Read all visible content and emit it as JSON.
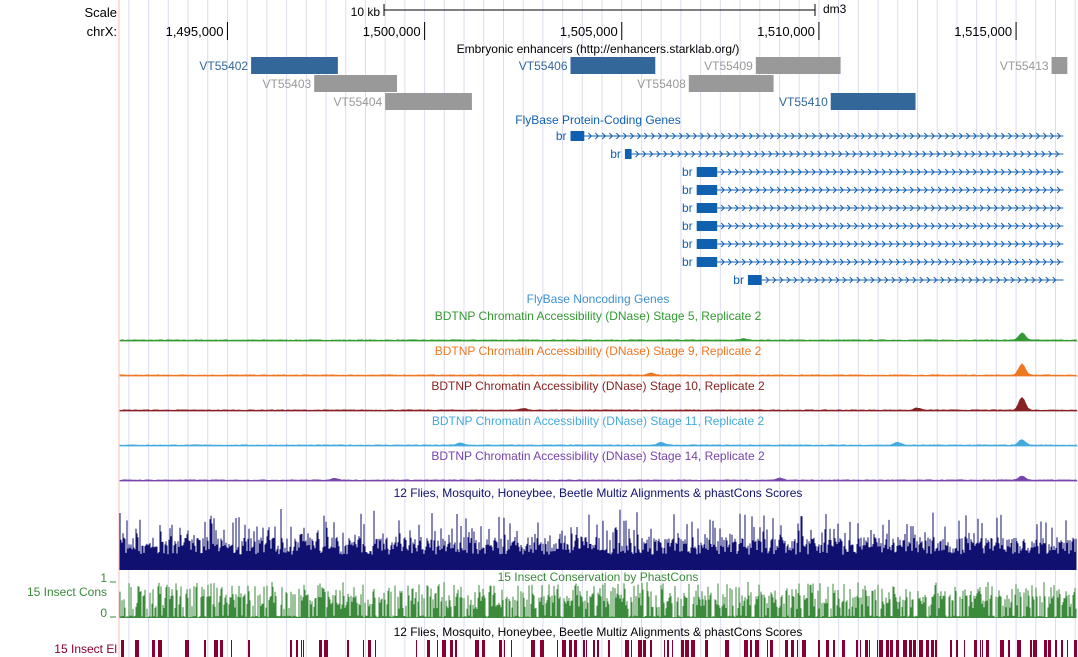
{
  "ruler": {
    "scale_label": "Scale",
    "chrom_label": "chrX:",
    "scalebar_label": "10 kb",
    "assembly": "dm3",
    "ticks": [
      {
        "pos": 1495000,
        "label": "1,495,000"
      },
      {
        "pos": 1500000,
        "label": "1,500,000"
      },
      {
        "pos": 1505000,
        "label": "1,505,000"
      },
      {
        "pos": 1510000,
        "label": "1,510,000"
      },
      {
        "pos": 1515000,
        "label": "1,515,000"
      }
    ]
  },
  "tracks": {
    "enhancers": {
      "title": "Embryonic enhancers (http://enhancers.starklab.org/)",
      "items": [
        {
          "name": "VT55402",
          "start": 1495600,
          "end": 1497800,
          "color": "#336699",
          "row": 0
        },
        {
          "name": "VT55403",
          "start": 1497200,
          "end": 1499300,
          "color": "#999999",
          "row": 1
        },
        {
          "name": "VT55404",
          "start": 1499000,
          "end": 1501200,
          "color": "#999999",
          "row": 2
        },
        {
          "name": "VT55406",
          "start": 1503700,
          "end": 1505850,
          "color": "#336699",
          "row": 0
        },
        {
          "name": "VT55408",
          "start": 1506700,
          "end": 1508850,
          "color": "#999999",
          "row": 1
        },
        {
          "name": "VT55409",
          "start": 1508400,
          "end": 1510550,
          "color": "#999999",
          "row": 0
        },
        {
          "name": "VT55410",
          "start": 1510300,
          "end": 1512450,
          "color": "#336699",
          "row": 2
        },
        {
          "name": "VT55413",
          "start": 1515900,
          "end": 1516300,
          "color": "#999999",
          "row": 0
        }
      ]
    },
    "genes": {
      "title": "FlyBase Protein-Coding Genes",
      "color": "#1060b0",
      "items": [
        {
          "name": "br",
          "exon_start": 1503700,
          "exon_end": 1504050,
          "end": 1516200
        },
        {
          "name": "br",
          "exon_start": 1505080,
          "exon_end": 1505250,
          "end": 1516200
        },
        {
          "name": "br",
          "exon_start": 1506900,
          "exon_end": 1507420,
          "end": 1516200
        },
        {
          "name": "br",
          "exon_start": 1506900,
          "exon_end": 1507420,
          "end": 1516200
        },
        {
          "name": "br",
          "exon_start": 1506900,
          "exon_end": 1507420,
          "end": 1516200
        },
        {
          "name": "br",
          "exon_start": 1506900,
          "exon_end": 1507420,
          "end": 1516200
        },
        {
          "name": "br",
          "exon_start": 1506900,
          "exon_end": 1507420,
          "end": 1516200
        },
        {
          "name": "br",
          "exon_start": 1506900,
          "exon_end": 1507420,
          "end": 1516200
        },
        {
          "name": "br",
          "exon_start": 1508200,
          "exon_end": 1508550,
          "end": 1516200
        }
      ]
    },
    "noncoding": {
      "title": "FlyBase Noncoding Genes",
      "color": "#4090d0"
    },
    "dnase": [
      {
        "title": "BDTNP Chromatin Accessibility (DNase) Stage 5, Replicate 2",
        "color": "#339933",
        "peaks": [
          {
            "pos": 1515150,
            "height": 0.5
          },
          {
            "pos": 1508100,
            "height": 0.1
          }
        ]
      },
      {
        "title": "BDTNP Chromatin Accessibility (DNase) Stage 9, Replicate 2",
        "color": "#ee7722",
        "peaks": [
          {
            "pos": 1515150,
            "height": 0.8
          },
          {
            "pos": 1505750,
            "height": 0.15
          }
        ]
      },
      {
        "title": "BDTNP Chromatin Accessibility (DNase) Stage 10, Replicate 2",
        "color": "#882222",
        "peaks": [
          {
            "pos": 1515150,
            "height": 0.9
          },
          {
            "pos": 1512500,
            "height": 0.15
          },
          {
            "pos": 1502500,
            "height": 0.12
          }
        ]
      },
      {
        "title": "BDTNP Chromatin Accessibility (DNase) Stage 11, Replicate 2",
        "color": "#44aadd",
        "peaks": [
          {
            "pos": 1515150,
            "height": 0.4
          },
          {
            "pos": 1512000,
            "height": 0.2
          },
          {
            "pos": 1506000,
            "height": 0.2
          },
          {
            "pos": 1500900,
            "height": 0.15
          }
        ]
      },
      {
        "title": "BDTNP Chromatin Accessibility (DNase) Stage 14, Replicate 2",
        "color": "#7744aa",
        "peaks": [
          {
            "pos": 1515150,
            "height": 0.3
          },
          {
            "pos": 1509000,
            "height": 0.15
          },
          {
            "pos": 1497700,
            "height": 0.12
          }
        ]
      }
    ],
    "multiz": {
      "title": "12 Flies, Mosquito, Honeybee, Beetle Multiz Alignments & phastCons Scores",
      "color": "#101070"
    },
    "phastcons": {
      "title": "15 Insect Conservation by PhastCons",
      "side_label": "15 Insect Cons",
      "ymax_label": "1",
      "ymin_label": "0",
      "color": "#3c8a3c"
    },
    "elements": {
      "title": "12 Flies, Mosquito, Honeybee, Beetle Multiz Alignments & phastCons Scores",
      "side_label": "15 Insect El",
      "color": "#880033"
    }
  }
}
